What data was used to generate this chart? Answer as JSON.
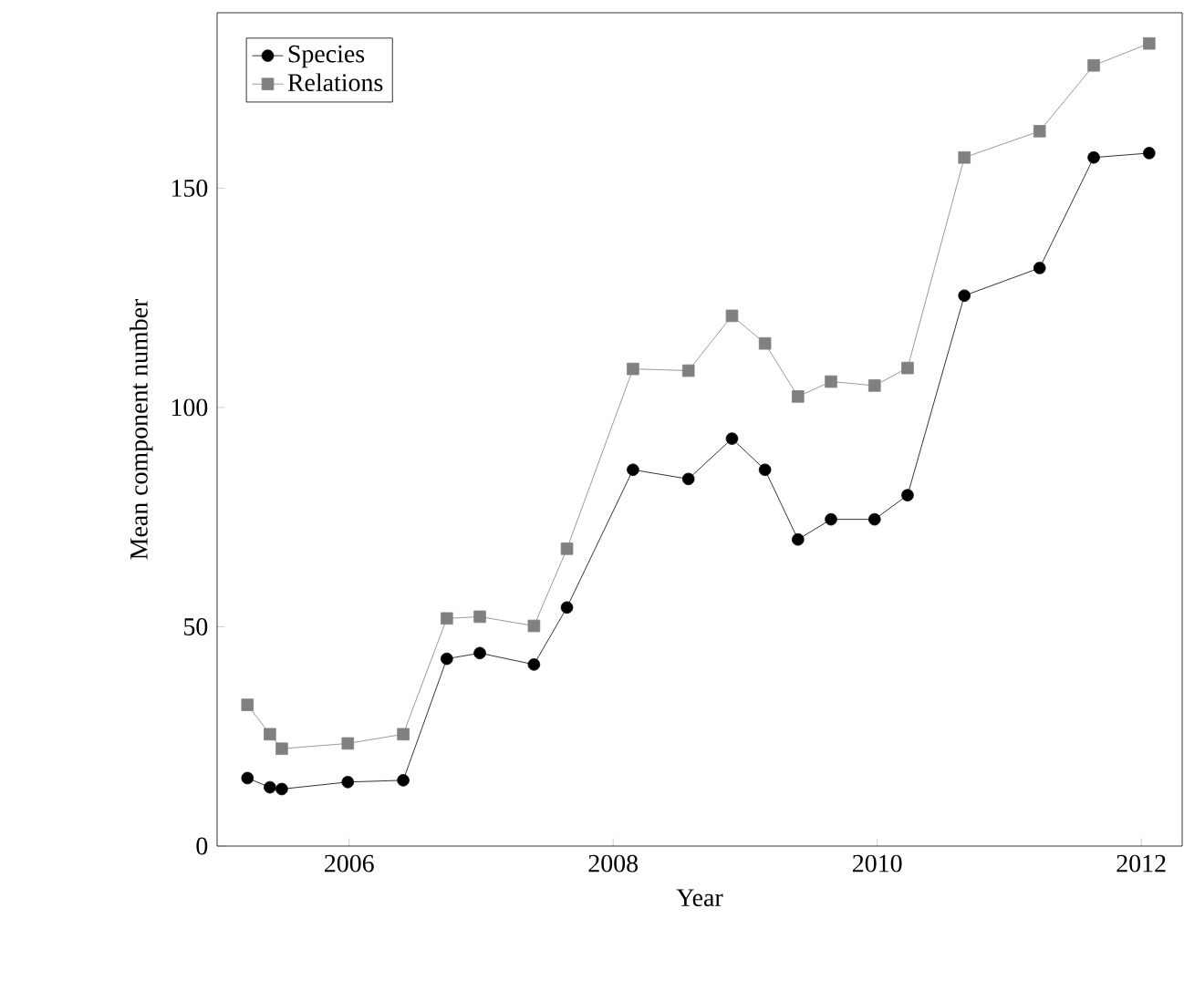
{
  "chart_data": {
    "type": "line",
    "xlabel": "Year",
    "ylabel": "Mean component number",
    "x": [
      2005.23,
      2005.4,
      2005.49,
      2005.99,
      2006.41,
      2006.74,
      2006.99,
      2007.4,
      2007.65,
      2008.15,
      2008.57,
      2008.9,
      2009.15,
      2009.4,
      2009.65,
      2009.98,
      2010.23,
      2010.66,
      2011.23,
      2011.64,
      2012.06
    ],
    "series": [
      {
        "name": "Species",
        "color": "#000000",
        "marker": "circle",
        "values": [
          15.5,
          13.4,
          13,
          14.6,
          15,
          42.7,
          44,
          41.4,
          54.4,
          85.8,
          83.7,
          92.9,
          85.8,
          69.9,
          74.5,
          74.5,
          80,
          125.5,
          131.8,
          157,
          158
        ]
      },
      {
        "name": "Relations",
        "color": "#808080",
        "marker": "square",
        "values": [
          32.2,
          25.5,
          22.2,
          23.4,
          25.5,
          51.9,
          52.3,
          50.2,
          67.8,
          108.8,
          108.4,
          120.9,
          114.6,
          102.5,
          105.9,
          105,
          109,
          157,
          163,
          178,
          183
        ]
      }
    ],
    "xlim": [
      2005.0,
      2012.31
    ],
    "ylim": [
      0,
      190
    ],
    "xticks": [
      2006,
      2008,
      2010,
      2012
    ],
    "yticks": [
      0,
      50,
      100,
      150
    ],
    "grid": false,
    "legend": "top left",
    "line_style": "solid"
  }
}
